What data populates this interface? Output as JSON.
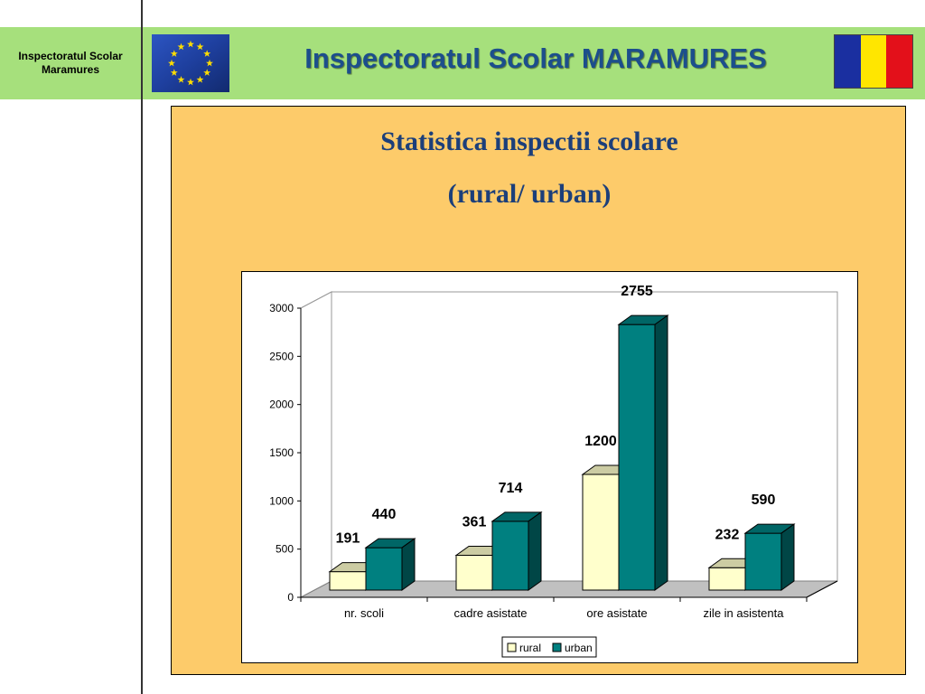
{
  "header": {
    "org_label_line1": "Inspectoratul Scolar",
    "org_label_line2": "Maramures",
    "title": "Inspectoratul Scolar MARAMURES",
    "eu_flag_icon": "eu-flag-icon",
    "ro_flag_icon": "romania-flag-icon",
    "colors": {
      "band": "#a6e07c",
      "title": "#1c4e8c",
      "eu_blue": "#1e3f9e",
      "eu_star": "#ffdd00",
      "ro_blue": "#1a2fa0",
      "ro_yellow": "#ffe600",
      "ro_red": "#e3101a"
    }
  },
  "slide": {
    "title": "Statistica inspectii scolare",
    "subtitle": "(rural/ urban)",
    "panel_color": "#fdcb6a"
  },
  "chart_data": {
    "type": "bar",
    "style": "3d-clustered",
    "categories": [
      "nr. scoli",
      "cadre asistate",
      "ore asistate",
      "zile in asistenta"
    ],
    "series": [
      {
        "name": "rural",
        "values": [
          191,
          361,
          1200,
          232
        ],
        "color": "#ffffcc"
      },
      {
        "name": "urban",
        "values": [
          440,
          714,
          2755,
          590
        ],
        "color": "#008080"
      }
    ],
    "ylim": [
      0,
      3000
    ],
    "yticks": [
      0,
      500,
      1000,
      1500,
      2000,
      2500,
      3000
    ],
    "grid": false,
    "legend": "bottom"
  }
}
